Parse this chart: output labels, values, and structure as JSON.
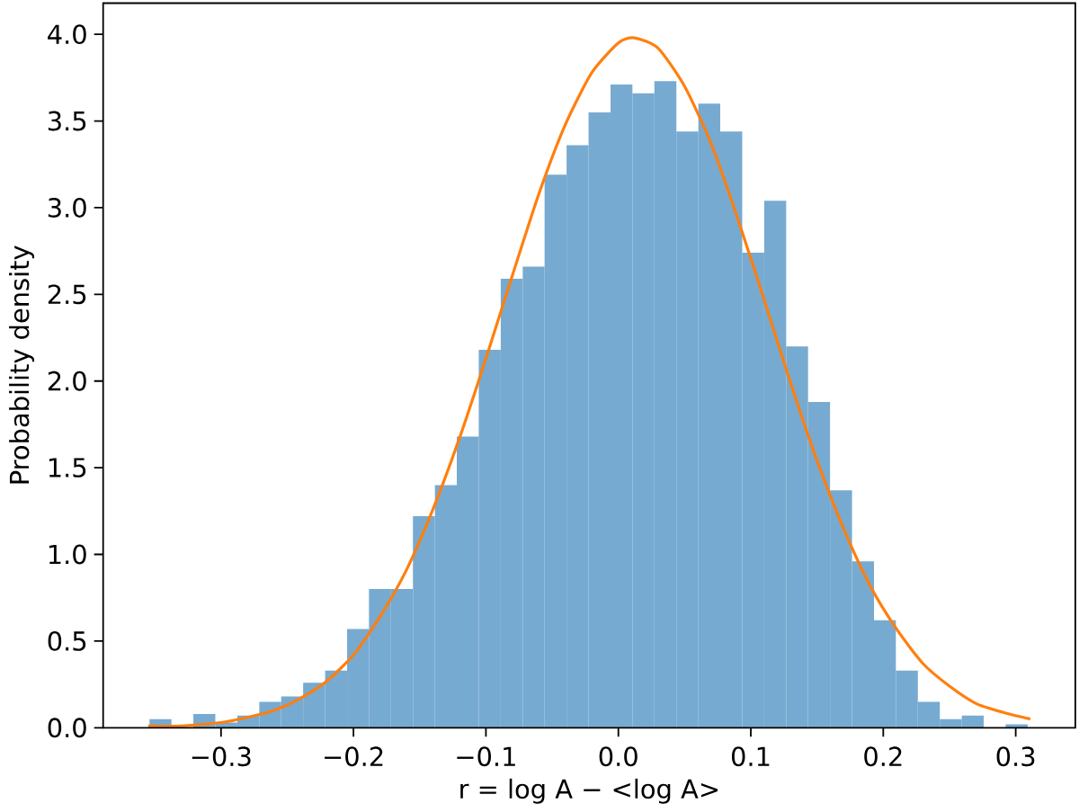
{
  "chart_data": {
    "type": "histogram",
    "xlabel": "r = log A − <log A>",
    "ylabel": "Probability density",
    "bins": [
      -0.354,
      -0.3374,
      -0.3209,
      -0.3043,
      -0.2877,
      -0.2711,
      -0.2546,
      -0.238,
      -0.2214,
      -0.2048,
      -0.1883,
      -0.1717,
      -0.1551,
      -0.1385,
      -0.122,
      -0.1054,
      -0.0888,
      -0.0722,
      -0.0557,
      -0.0391,
      -0.0225,
      -0.0059,
      0.0106,
      0.0272,
      0.0438,
      0.0604,
      0.0769,
      0.0935,
      0.1101,
      0.1267,
      0.1432,
      0.1598,
      0.1764,
      0.193,
      0.2095,
      0.2261,
      0.2427,
      0.2593,
      0.2758,
      0.2924,
      0.309
    ],
    "series": [
      {
        "color": "#77aad1",
        "values": [
          0.05,
          null,
          0.08,
          0.03,
          0.07,
          0.15,
          0.18,
          0.26,
          0.33,
          0.57,
          0.8,
          0.8,
          1.22,
          1.4,
          1.68,
          2.18,
          2.59,
          2.66,
          3.19,
          3.36,
          3.55,
          3.71,
          3.66,
          3.73,
          3.44,
          3.6,
          3.44,
          2.74,
          3.04,
          2.2,
          1.88,
          1.37,
          0.96,
          0.62,
          0.33,
          0.15,
          0.05,
          0.07,
          0,
          0.02
        ]
      },
      {
        "type": "line",
        "color": "#ff7f0e",
        "x": [
          -0.355,
          -0.33,
          -0.3,
          -0.28,
          -0.26,
          -0.24,
          -0.22,
          -0.2,
          -0.18,
          -0.16,
          -0.14,
          -0.12,
          -0.1,
          -0.08,
          -0.06,
          -0.04,
          -0.02,
          0.0,
          0.012,
          0.03,
          0.05,
          0.07,
          0.09,
          0.11,
          0.13,
          0.15,
          0.17,
          0.19,
          0.21,
          0.23,
          0.25,
          0.27,
          0.29,
          0.311
        ],
        "values": [
          0.01,
          0.01,
          0.03,
          0.06,
          0.1,
          0.17,
          0.27,
          0.42,
          0.64,
          0.91,
          1.26,
          1.67,
          2.13,
          2.61,
          3.08,
          3.48,
          3.78,
          3.95,
          3.98,
          3.92,
          3.7,
          3.37,
          2.94,
          2.47,
          1.99,
          1.54,
          1.15,
          0.82,
          0.57,
          0.37,
          0.24,
          0.14,
          0.09,
          0.05
        ]
      }
    ],
    "xlim": [
      -0.389,
      0.345
    ],
    "ylim": [
      0,
      4.18
    ],
    "xticks": [
      {
        "value": -0.3,
        "label": "−0.3"
      },
      {
        "value": -0.2,
        "label": "−0.2"
      },
      {
        "value": -0.1,
        "label": "−0.1"
      },
      {
        "value": 0.0,
        "label": "0.0"
      },
      {
        "value": 0.1,
        "label": "0.1"
      },
      {
        "value": 0.2,
        "label": "0.2"
      },
      {
        "value": 0.3,
        "label": "0.3"
      }
    ],
    "yticks": [
      {
        "value": 0.0,
        "label": "0.0"
      },
      {
        "value": 0.5,
        "label": "0.5"
      },
      {
        "value": 1.0,
        "label": "1.0"
      },
      {
        "value": 1.5,
        "label": "1.5"
      },
      {
        "value": 2.0,
        "label": "2.0"
      },
      {
        "value": 2.5,
        "label": "2.5"
      },
      {
        "value": 3.0,
        "label": "3.0"
      },
      {
        "value": 3.5,
        "label": "3.5"
      },
      {
        "value": 4.0,
        "label": "4.0"
      }
    ],
    "grid": false
  }
}
